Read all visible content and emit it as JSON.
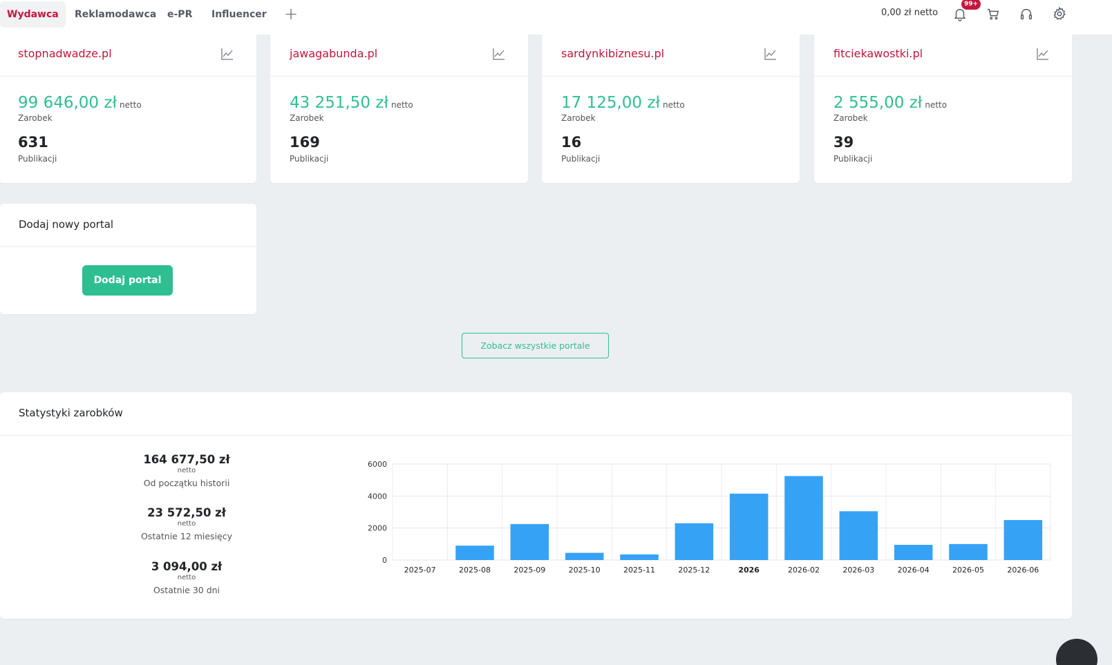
{
  "nav": {
    "tabs": [
      {
        "label": "Wydawca",
        "active": true
      },
      {
        "label": "Reklamodawca",
        "active": false
      },
      {
        "label": "e-PR",
        "active": false
      },
      {
        "label": "Influencer",
        "active": false
      }
    ],
    "plus_icon": "plus-icon",
    "balance": "0,00 zł netto",
    "notification_badge": "99+",
    "icons": [
      "bell-icon",
      "cart-icon",
      "headset-icon",
      "gear-icon"
    ]
  },
  "portals": [
    {
      "name": "stopnadwadze.pl",
      "amount": "99 646,00 zł",
      "netto": "netto",
      "earn_label": "Zarobek",
      "count": "631",
      "count_label": "Publikacji"
    },
    {
      "name": "jawagabunda.pl",
      "amount": "43 251,50 zł",
      "netto": "netto",
      "earn_label": "Zarobek",
      "count": "169",
      "count_label": "Publikacji"
    },
    {
      "name": "sardynkibiznesu.pl",
      "amount": "17 125,00 zł",
      "netto": "netto",
      "earn_label": "Zarobek",
      "count": "16",
      "count_label": "Publikacji"
    },
    {
      "name": "fitciekawostki.pl",
      "amount": "2 555,00 zł",
      "netto": "netto",
      "earn_label": "Zarobek",
      "count": "39",
      "count_label": "Publikacji"
    }
  ],
  "add_portal": {
    "title": "Dodaj nowy portal",
    "button": "Dodaj portal"
  },
  "see_all": "Zobacz wszystkie portale",
  "stats": {
    "title": "Statystyki zarobków",
    "items": [
      {
        "value": "164 677,50 zł",
        "netto": "netto",
        "period": "Od początku historii"
      },
      {
        "value": "23 572,50 zł",
        "netto": "netto",
        "period": "Ostatnie 12 miesięcy"
      },
      {
        "value": "3 094,00 zł",
        "netto": "netto",
        "period": "Ostatnie 30 dni"
      }
    ]
  },
  "colors": {
    "brand": "#c4163c",
    "accent": "#2ebf91",
    "bar": "#36a2f5"
  },
  "chart_data": {
    "type": "bar",
    "categories": [
      "2025-07",
      "2025-08",
      "2025-09",
      "2025-10",
      "2025-11",
      "2025-12",
      "2026",
      "2026-02",
      "2026-03",
      "2026-04",
      "2026-05",
      "2026-06"
    ],
    "bold_categories": [
      "2026"
    ],
    "values": [
      0,
      900,
      2250,
      450,
      350,
      2300,
      4150,
      5250,
      3050,
      950,
      1000,
      2500
    ],
    "yticks": [
      "0",
      "2000",
      "4000",
      "6000"
    ],
    "ylim": [
      0,
      6000
    ],
    "grid": true
  }
}
